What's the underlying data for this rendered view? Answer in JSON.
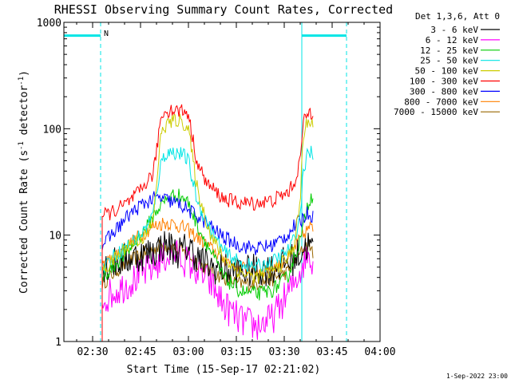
{
  "chart_data": {
    "type": "line",
    "title": "RHESSI Observing Summary Count Rates, Corrected",
    "xlabel": "Start Time (15-Sep-17 02:21:02)",
    "ylabel_parts": [
      "Corrected Count Rate (s",
      "-1",
      " detector",
      "-1",
      ")"
    ],
    "x_scale": "time",
    "x_unit": "minutes after 02:21:02 UT",
    "xlim": [
      0,
      99
    ],
    "xticks": [
      {
        "label": "02:30",
        "value": 9
      },
      {
        "label": "02:45",
        "value": 24
      },
      {
        "label": "03:00",
        "value": 39
      },
      {
        "label": "03:15",
        "value": 54
      },
      {
        "label": "03:30",
        "value": 69
      },
      {
        "label": "03:45",
        "value": 84
      },
      {
        "label": "04:00",
        "value": 99
      }
    ],
    "y_scale": "log",
    "ylim": [
      1,
      1000
    ],
    "yticks": [
      {
        "label": "1",
        "value": 1
      },
      {
        "label": "10",
        "value": 10
      },
      {
        "label": "100",
        "value": 100
      },
      {
        "label": "1000",
        "value": 1000
      }
    ],
    "legend_title": "Det 1,3,6, Att 0",
    "legend_position": "outside-right",
    "series": [
      {
        "name": "3 - 6 keV",
        "color": "#000000",
        "x": [
          12,
          20,
          28,
          31,
          33,
          35,
          37,
          39,
          42,
          46,
          55,
          65,
          72,
          74.5,
          76,
          77,
          78
        ],
        "values": [
          5,
          6,
          7,
          8,
          8,
          7,
          7,
          8,
          6,
          5,
          4.5,
          4.8,
          6,
          7,
          8,
          8,
          7
        ]
      },
      {
        "name": "6 - 12 keV",
        "color": "#ff00ff",
        "x": [
          12,
          20,
          28,
          31,
          33,
          35,
          37,
          39,
          42,
          46,
          50,
          55,
          60,
          65,
          70,
          72,
          74.5,
          76,
          77,
          78
        ],
        "values": [
          2.5,
          3.5,
          5,
          6,
          6.5,
          6.5,
          6,
          5.5,
          4.5,
          3.5,
          2.2,
          1.6,
          1.4,
          1.6,
          2.8,
          3.5,
          5,
          6.5,
          6.5,
          6
        ]
      },
      {
        "name": "12 - 25 keV",
        "color": "#00cc00",
        "x": [
          12,
          20,
          26,
          29,
          31,
          33,
          35,
          37,
          39,
          42,
          46,
          50,
          55,
          60,
          65,
          70,
          72,
          74.5,
          76,
          77,
          78
        ],
        "values": [
          4,
          7,
          12,
          17,
          20,
          23,
          24,
          23,
          20,
          12,
          7,
          4,
          3,
          2.8,
          3,
          4,
          6,
          10,
          18,
          22,
          24
        ]
      },
      {
        "name": "25 - 50 keV",
        "color": "#00e5e5",
        "x": [
          12,
          16,
          20,
          24,
          26,
          28,
          29,
          30,
          31,
          33,
          35,
          37,
          39,
          40,
          42,
          46,
          50,
          55,
          60,
          65,
          70,
          72,
          74,
          74.5,
          75,
          76,
          77,
          78
        ],
        "values": [
          5,
          6.5,
          8,
          10,
          12,
          16,
          25,
          40,
          55,
          60,
          60,
          58,
          50,
          35,
          20,
          11,
          7,
          5.5,
          5,
          5.5,
          7,
          9,
          15,
          25,
          40,
          55,
          60,
          58
        ]
      },
      {
        "name": "50 - 100 keV",
        "color": "#cccc00",
        "x": [
          12,
          20,
          26,
          28,
          29,
          30,
          31,
          33,
          35,
          37,
          39,
          40,
          42,
          46,
          50,
          55,
          60,
          65,
          70,
          72,
          74,
          74.5,
          75,
          76,
          77,
          78
        ],
        "values": [
          4.5,
          8,
          10,
          14,
          30,
          70,
          100,
          115,
          120,
          118,
          100,
          60,
          25,
          10,
          6,
          4.5,
          4,
          4.5,
          6,
          8,
          20,
          50,
          85,
          110,
          120,
          115
        ]
      },
      {
        "name": "100 - 300 keV",
        "color": "#ff0000",
        "x": [
          12,
          16,
          20,
          24,
          26,
          28,
          29,
          30,
          31,
          33,
          35,
          37,
          39,
          40,
          42,
          45,
          50,
          55,
          60,
          65,
          70,
          72,
          74,
          74.5,
          75,
          76,
          77,
          78
        ],
        "values": [
          15,
          17,
          20,
          26,
          32,
          38,
          60,
          110,
          140,
          150,
          150,
          148,
          140,
          90,
          45,
          30,
          22,
          20,
          20,
          21,
          25,
          30,
          50,
          80,
          110,
          135,
          145,
          140
        ]
      },
      {
        "name": "300 - 800 keV",
        "color": "#0000ff",
        "x": [
          12,
          16,
          20,
          24,
          28,
          31,
          33,
          35,
          37,
          39,
          42,
          46,
          50,
          55,
          60,
          65,
          70,
          72,
          74.5,
          76,
          77,
          78
        ],
        "values": [
          8,
          11,
          15,
          19,
          22,
          22,
          21,
          20,
          19,
          17,
          15,
          12,
          9.5,
          8,
          7.5,
          8,
          10,
          12,
          14,
          16,
          16,
          15
        ]
      },
      {
        "name": "800 - 7000 keV",
        "color": "#ff8000",
        "x": [
          12,
          16,
          20,
          24,
          28,
          31,
          33,
          35,
          37,
          39,
          42,
          46,
          50,
          55,
          60,
          65,
          70,
          72,
          74.5,
          76,
          77,
          78
        ],
        "values": [
          5,
          6.5,
          8,
          10,
          12,
          13,
          13,
          12.5,
          12,
          11,
          9.5,
          7.5,
          6,
          5,
          4.5,
          5,
          6,
          7.5,
          9.5,
          11,
          12,
          11
        ]
      },
      {
        "name": "7000 - 15000 keV",
        "color": "#996600",
        "x": [
          12,
          16,
          20,
          24,
          28,
          31,
          33,
          35,
          37,
          39,
          42,
          46,
          50,
          55,
          60,
          65,
          70,
          72,
          74.5,
          76,
          77,
          78
        ],
        "values": [
          3.5,
          4.5,
          5.5,
          6.5,
          7.5,
          8,
          8,
          7.5,
          7,
          6.5,
          5.5,
          4.5,
          4,
          3.5,
          3.5,
          3.8,
          4.5,
          5.5,
          7,
          8,
          8,
          7
        ]
      }
    ],
    "annotations": [
      {
        "kind": "flag-bar",
        "label": "",
        "x_start": 0,
        "x_end": 11.5,
        "y": 750,
        "color": "#00e5e5"
      },
      {
        "kind": "flag-bar",
        "label": "",
        "x_start": 74.5,
        "x_end": 88.5,
        "y": 750,
        "color": "#00e5e5"
      },
      {
        "kind": "vertical-line",
        "style": "solid",
        "x": 0,
        "color": "#00e5e5"
      },
      {
        "kind": "vertical-line",
        "style": "dashed",
        "x": 11.5,
        "color": "#00e5e5"
      },
      {
        "kind": "vertical-line",
        "style": "solid",
        "x": 74.5,
        "color": "#00e5e5"
      },
      {
        "kind": "vertical-line",
        "style": "dashed",
        "x": 88.5,
        "color": "#00e5e5"
      },
      {
        "kind": "label",
        "text": "N",
        "x": 12.5,
        "y": 800,
        "color": "#00e5e5"
      }
    ]
  },
  "footer_date": "1-Sep-2022 23:00"
}
